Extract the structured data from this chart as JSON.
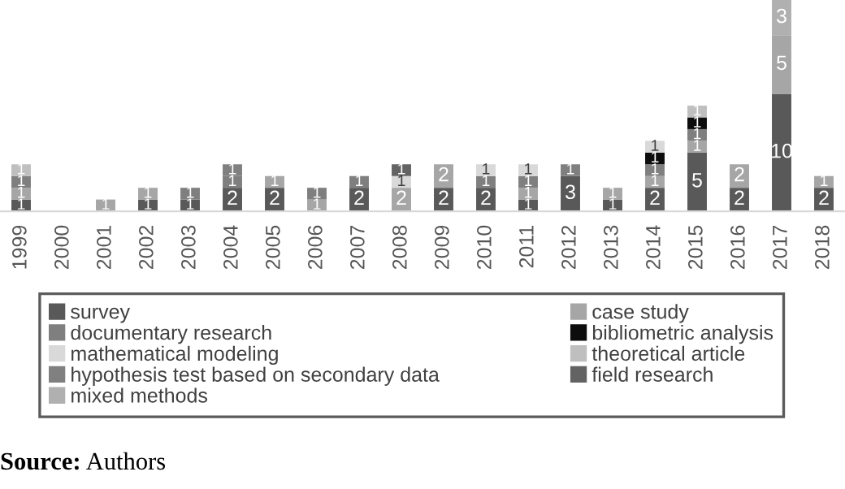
{
  "chart_data": {
    "type": "bar",
    "stacked": true,
    "data_labels": true,
    "legend": "bottom",
    "grid": false,
    "categories": [
      "1999",
      "2000",
      "2001",
      "2002",
      "2003",
      "2004",
      "2005",
      "2006",
      "2007",
      "2008",
      "2009",
      "2010",
      "2011",
      "2012",
      "2013",
      "2014",
      "2015",
      "2016",
      "2017",
      "2018"
    ],
    "series": [
      {
        "name": "survey",
        "color": "#595959",
        "values": [
          1,
          null,
          null,
          1,
          1,
          2,
          2,
          null,
          2,
          null,
          2,
          2,
          1,
          3,
          1,
          2,
          5,
          2,
          10,
          2
        ]
      },
      {
        "name": "case study",
        "color": "#a6a6a6",
        "values": [
          1,
          null,
          1,
          1,
          null,
          null,
          1,
          1,
          null,
          2,
          2,
          null,
          1,
          null,
          1,
          1,
          1,
          2,
          5,
          1
        ]
      },
      {
        "name": "documentary research",
        "color": "#7f7f7f",
        "values": [
          1,
          null,
          null,
          null,
          1,
          1,
          null,
          1,
          1,
          null,
          null,
          1,
          1,
          1,
          null,
          1,
          1,
          null,
          null,
          null
        ]
      },
      {
        "name": "bibliometric analysis",
        "color": "#0d0d0d",
        "values": [
          null,
          null,
          null,
          null,
          null,
          null,
          null,
          null,
          null,
          null,
          null,
          null,
          null,
          null,
          null,
          1,
          1,
          null,
          null,
          null
        ]
      },
      {
        "name": "mathematical modeling",
        "color": "#d9d9d9",
        "values": [
          null,
          null,
          null,
          null,
          null,
          null,
          null,
          null,
          null,
          1,
          null,
          1,
          1,
          null,
          null,
          1,
          null,
          null,
          null,
          null
        ]
      },
      {
        "name": "theoretical article",
        "color": "#bfbfbf",
        "values": [
          1,
          null,
          null,
          null,
          null,
          null,
          null,
          null,
          null,
          null,
          null,
          null,
          null,
          null,
          null,
          null,
          1,
          null,
          null,
          null
        ]
      },
      {
        "name": "hypothesis test based on secondary data",
        "color": "#808080",
        "values": [
          null,
          null,
          null,
          null,
          null,
          1,
          null,
          null,
          null,
          null,
          null,
          null,
          null,
          null,
          null,
          null,
          null,
          null,
          null,
          null
        ]
      },
      {
        "name": "field research",
        "color": "#636363",
        "values": [
          null,
          null,
          null,
          null,
          null,
          null,
          null,
          null,
          null,
          1,
          null,
          null,
          null,
          null,
          null,
          null,
          null,
          null,
          null,
          null
        ]
      },
      {
        "name": "mixed methods",
        "color": "#b0b0b0",
        "values": [
          null,
          null,
          null,
          null,
          null,
          null,
          null,
          null,
          null,
          null,
          null,
          null,
          null,
          null,
          null,
          null,
          null,
          null,
          3,
          null
        ]
      }
    ],
    "annotations": [
      "Source: Authors"
    ]
  }
}
